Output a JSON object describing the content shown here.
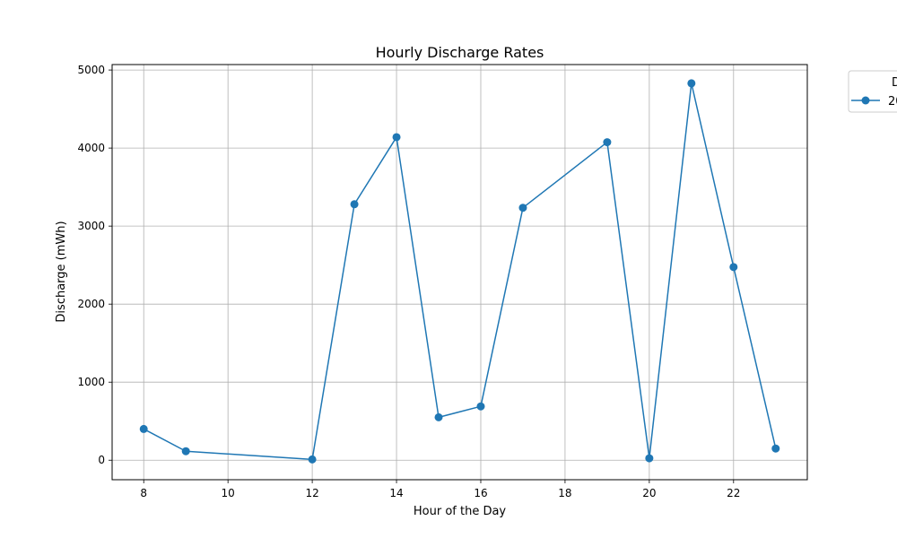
{
  "chart_data": {
    "type": "line",
    "title": "Hourly Discharge Rates",
    "xlabel": "Hour of the Day",
    "ylabel": "Discharge (mWh)",
    "xlim": [
      7.25,
      23.75
    ],
    "ylim": [
      -250,
      5070
    ],
    "xticks": [
      8,
      10,
      12,
      14,
      16,
      18,
      20,
      22
    ],
    "yticks": [
      0,
      1000,
      2000,
      3000,
      4000,
      5000
    ],
    "grid": true,
    "legend": {
      "placement": "outside-top-right",
      "title": "D",
      "entries": [
        "20"
      ]
    },
    "series": [
      {
        "color": "#1f77b4",
        "marker": "circle",
        "x": [
          8,
          9,
          12,
          13,
          14,
          15,
          16,
          17,
          19,
          20,
          21,
          22,
          23
        ],
        "y": [
          400,
          115,
          10,
          3280,
          4140,
          550,
          690,
          3235,
          4075,
          25,
          4830,
          2475,
          150
        ]
      }
    ]
  }
}
